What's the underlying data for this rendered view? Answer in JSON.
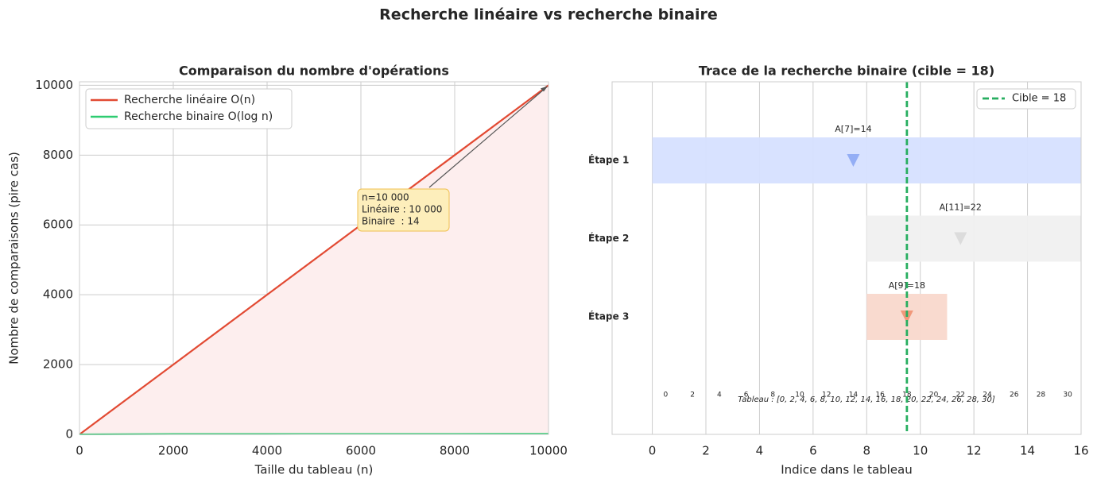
{
  "chart_data": [
    {
      "type": "line",
      "suptitle": "Recherche linéaire vs recherche binaire",
      "title": "Comparaison du nombre d'opérations",
      "xlabel": "Taille du tableau (n)",
      "ylabel": "Nombre de comparaisons (pire cas)",
      "x": [
        1,
        2000,
        4000,
        6000,
        8000,
        10000
      ],
      "series": [
        {
          "name": "Recherche linéaire O(n)",
          "color": "#e24a33",
          "fill": "#fdeeee",
          "values": [
            1,
            2000,
            4000,
            6000,
            8000,
            10000
          ]
        },
        {
          "name": "Recherche binaire O(log n)",
          "color": "#2ecc71",
          "values": [
            1,
            11,
            12,
            13,
            13,
            14
          ]
        }
      ],
      "xlim": [
        0,
        10000
      ],
      "ylim": [
        0,
        10100
      ],
      "xticks": [
        0,
        2000,
        4000,
        6000,
        8000,
        10000
      ],
      "yticks": [
        0,
        2000,
        4000,
        6000,
        8000,
        10000
      ],
      "grid": true,
      "legend": "upper left",
      "annotation": {
        "lines": [
          "n=10 000",
          "Linéaire : 10 000",
          "Binaire  : 14"
        ],
        "x": 10000,
        "y": 10000
      }
    },
    {
      "type": "trace",
      "title": "Trace de la recherche binaire (cible = 18)",
      "xlabel": "Indice dans le tableau",
      "xlim": [
        -1.5,
        16
      ],
      "xticks": [
        0,
        2,
        4,
        6,
        8,
        10,
        12,
        14,
        16
      ],
      "grid": true,
      "steps": [
        "Étape 1",
        "Étape 2",
        "Étape 3"
      ],
      "start": [
        0,
        8,
        8
      ],
      "end": [
        16,
        16,
        11
      ],
      "mid": [
        7.5,
        11.5,
        9.5
      ],
      "mid_labels": [
        "A[7]=14",
        "A[11]=22",
        "A[9]=18"
      ],
      "colors": [
        "#d6e0ff",
        "#f0f0f0",
        "#f9d8cc"
      ],
      "marker_colors": [
        "#94aef5",
        "#dcdcdc",
        "#f0987a"
      ],
      "target": 9.5,
      "target_name": "Cible = 18",
      "target_color": "#27ae60",
      "legend": "upper right",
      "array": [
        0,
        2,
        4,
        6,
        8,
        10,
        12,
        14,
        16,
        18,
        20,
        22,
        24,
        26,
        28,
        30
      ],
      "array_caption": "Tableau : [0, 2, 4, 6, 8, 10, 12, 14, 16, 18, 20, 22, 24, 26, 28, 30]"
    }
  ]
}
